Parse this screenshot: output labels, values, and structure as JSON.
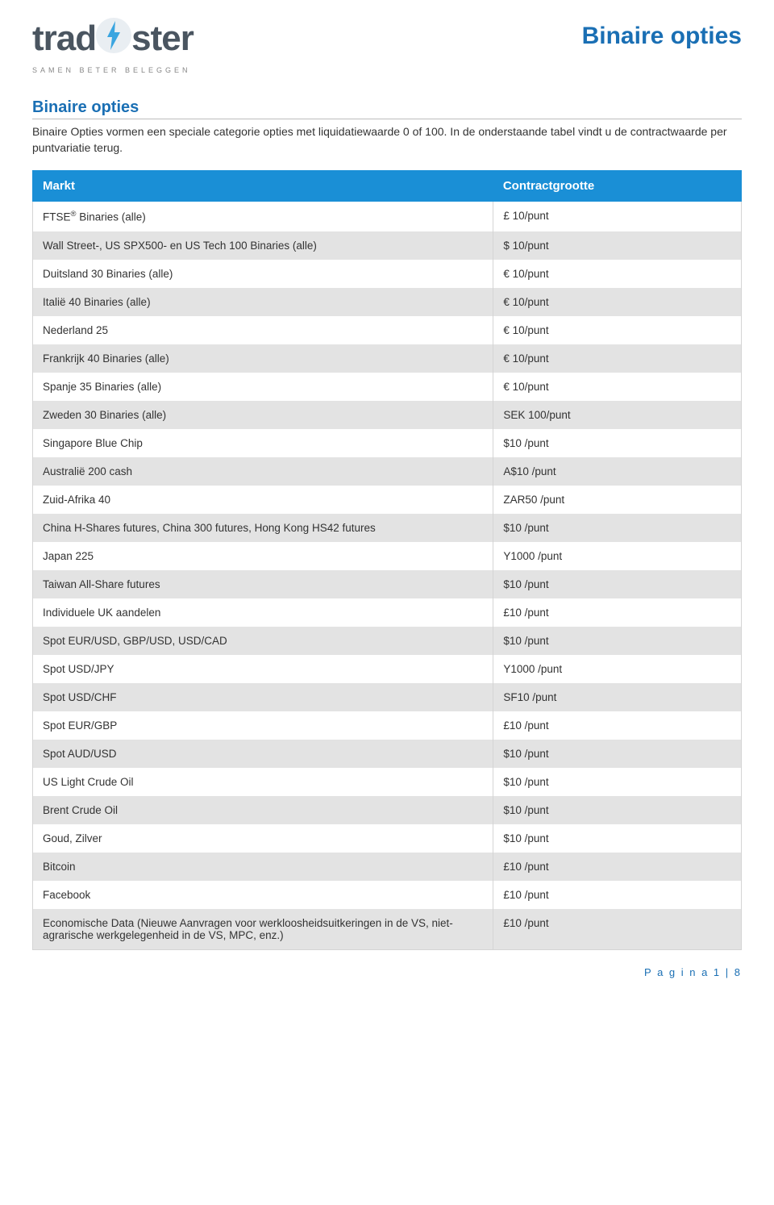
{
  "logo": {
    "text_left": "trad",
    "text_right": "ster",
    "tagline": "SAMEN BETER BELEGGEN"
  },
  "doc_title": "Binaire opties",
  "section_heading": "Binaire opties",
  "intro_text": "Binaire Opties vormen een speciale categorie opties met liquidatiewaarde 0 of 100. In de onderstaande tabel vindt u de contractwaarde per puntvariatie terug.",
  "table": {
    "columns": [
      "Markt",
      "Contractgrootte"
    ],
    "col_widths": [
      "65%",
      "35%"
    ],
    "header_bg": "#1a8fd6",
    "header_fg": "#ffffff",
    "row_bg_odd": "#ffffff",
    "row_bg_even": "#e3e3e3",
    "border_color": "#d4d4d4",
    "rows": [
      {
        "market": "FTSE® Binaries (alle)",
        "size": "£ 10/punt"
      },
      {
        "market": "Wall Street-, US SPX500- en US Tech 100 Binaries (alle)",
        "size": "$ 10/punt"
      },
      {
        "market": "Duitsland 30 Binaries (alle)",
        "size": "€ 10/punt"
      },
      {
        "market": "Italië 40 Binaries (alle)",
        "size": "€ 10/punt"
      },
      {
        "market": "Nederland 25",
        "size": "€ 10/punt"
      },
      {
        "market": "Frankrijk 40 Binaries (alle)",
        "size": "€ 10/punt"
      },
      {
        "market": "Spanje 35 Binaries (alle)",
        "size": "€ 10/punt"
      },
      {
        "market": "Zweden 30 Binaries (alle)",
        "size": "SEK 100/punt"
      },
      {
        "market": "Singapore Blue Chip",
        "size": "$10 /punt"
      },
      {
        "market": "Australië 200 cash",
        "size": "A$10 /punt"
      },
      {
        "market": "Zuid-Afrika 40",
        "size": "ZAR50 /punt"
      },
      {
        "market": "China H-Shares futures, China 300 futures, Hong Kong HS42 futures",
        "size": "$10 /punt"
      },
      {
        "market": "Japan 225",
        "size": "Y1000 /punt"
      },
      {
        "market": "Taiwan All-Share futures",
        "size": "$10 /punt"
      },
      {
        "market": "Individuele UK aandelen",
        "size": "£10 /punt"
      },
      {
        "market": "Spot EUR/USD, GBP/USD, USD/CAD",
        "size": "$10 /punt"
      },
      {
        "market": "Spot USD/JPY",
        "size": "Y1000 /punt"
      },
      {
        "market": "Spot USD/CHF",
        "size": "SF10 /punt"
      },
      {
        "market": "Spot EUR/GBP",
        "size": "£10 /punt"
      },
      {
        "market": "Spot AUD/USD",
        "size": "$10 /punt"
      },
      {
        "market": "US Light Crude Oil",
        "size": "$10 /punt"
      },
      {
        "market": "Brent Crude Oil",
        "size": "$10 /punt"
      },
      {
        "market": "Goud, Zilver",
        "size": "$10 /punt"
      },
      {
        "market": "Bitcoin",
        "size": "£10 /punt"
      },
      {
        "market": "Facebook",
        "size": "£10 /punt"
      },
      {
        "market": "Economische Data (Nieuwe Aanvragen voor werkloosheidsuitkeringen in de VS, niet-agrarische werkgelegenheid in de VS, MPC, enz.)",
        "size": "£10 /punt"
      }
    ]
  },
  "footer_text": "P a g i n a  1 | 8",
  "colors": {
    "brand_blue": "#1a6fb4",
    "table_header": "#1a8fd6",
    "logo_gray": "#4a5560",
    "bolt_light": "#b9d6e6",
    "bolt_blue": "#3aa5e0"
  }
}
